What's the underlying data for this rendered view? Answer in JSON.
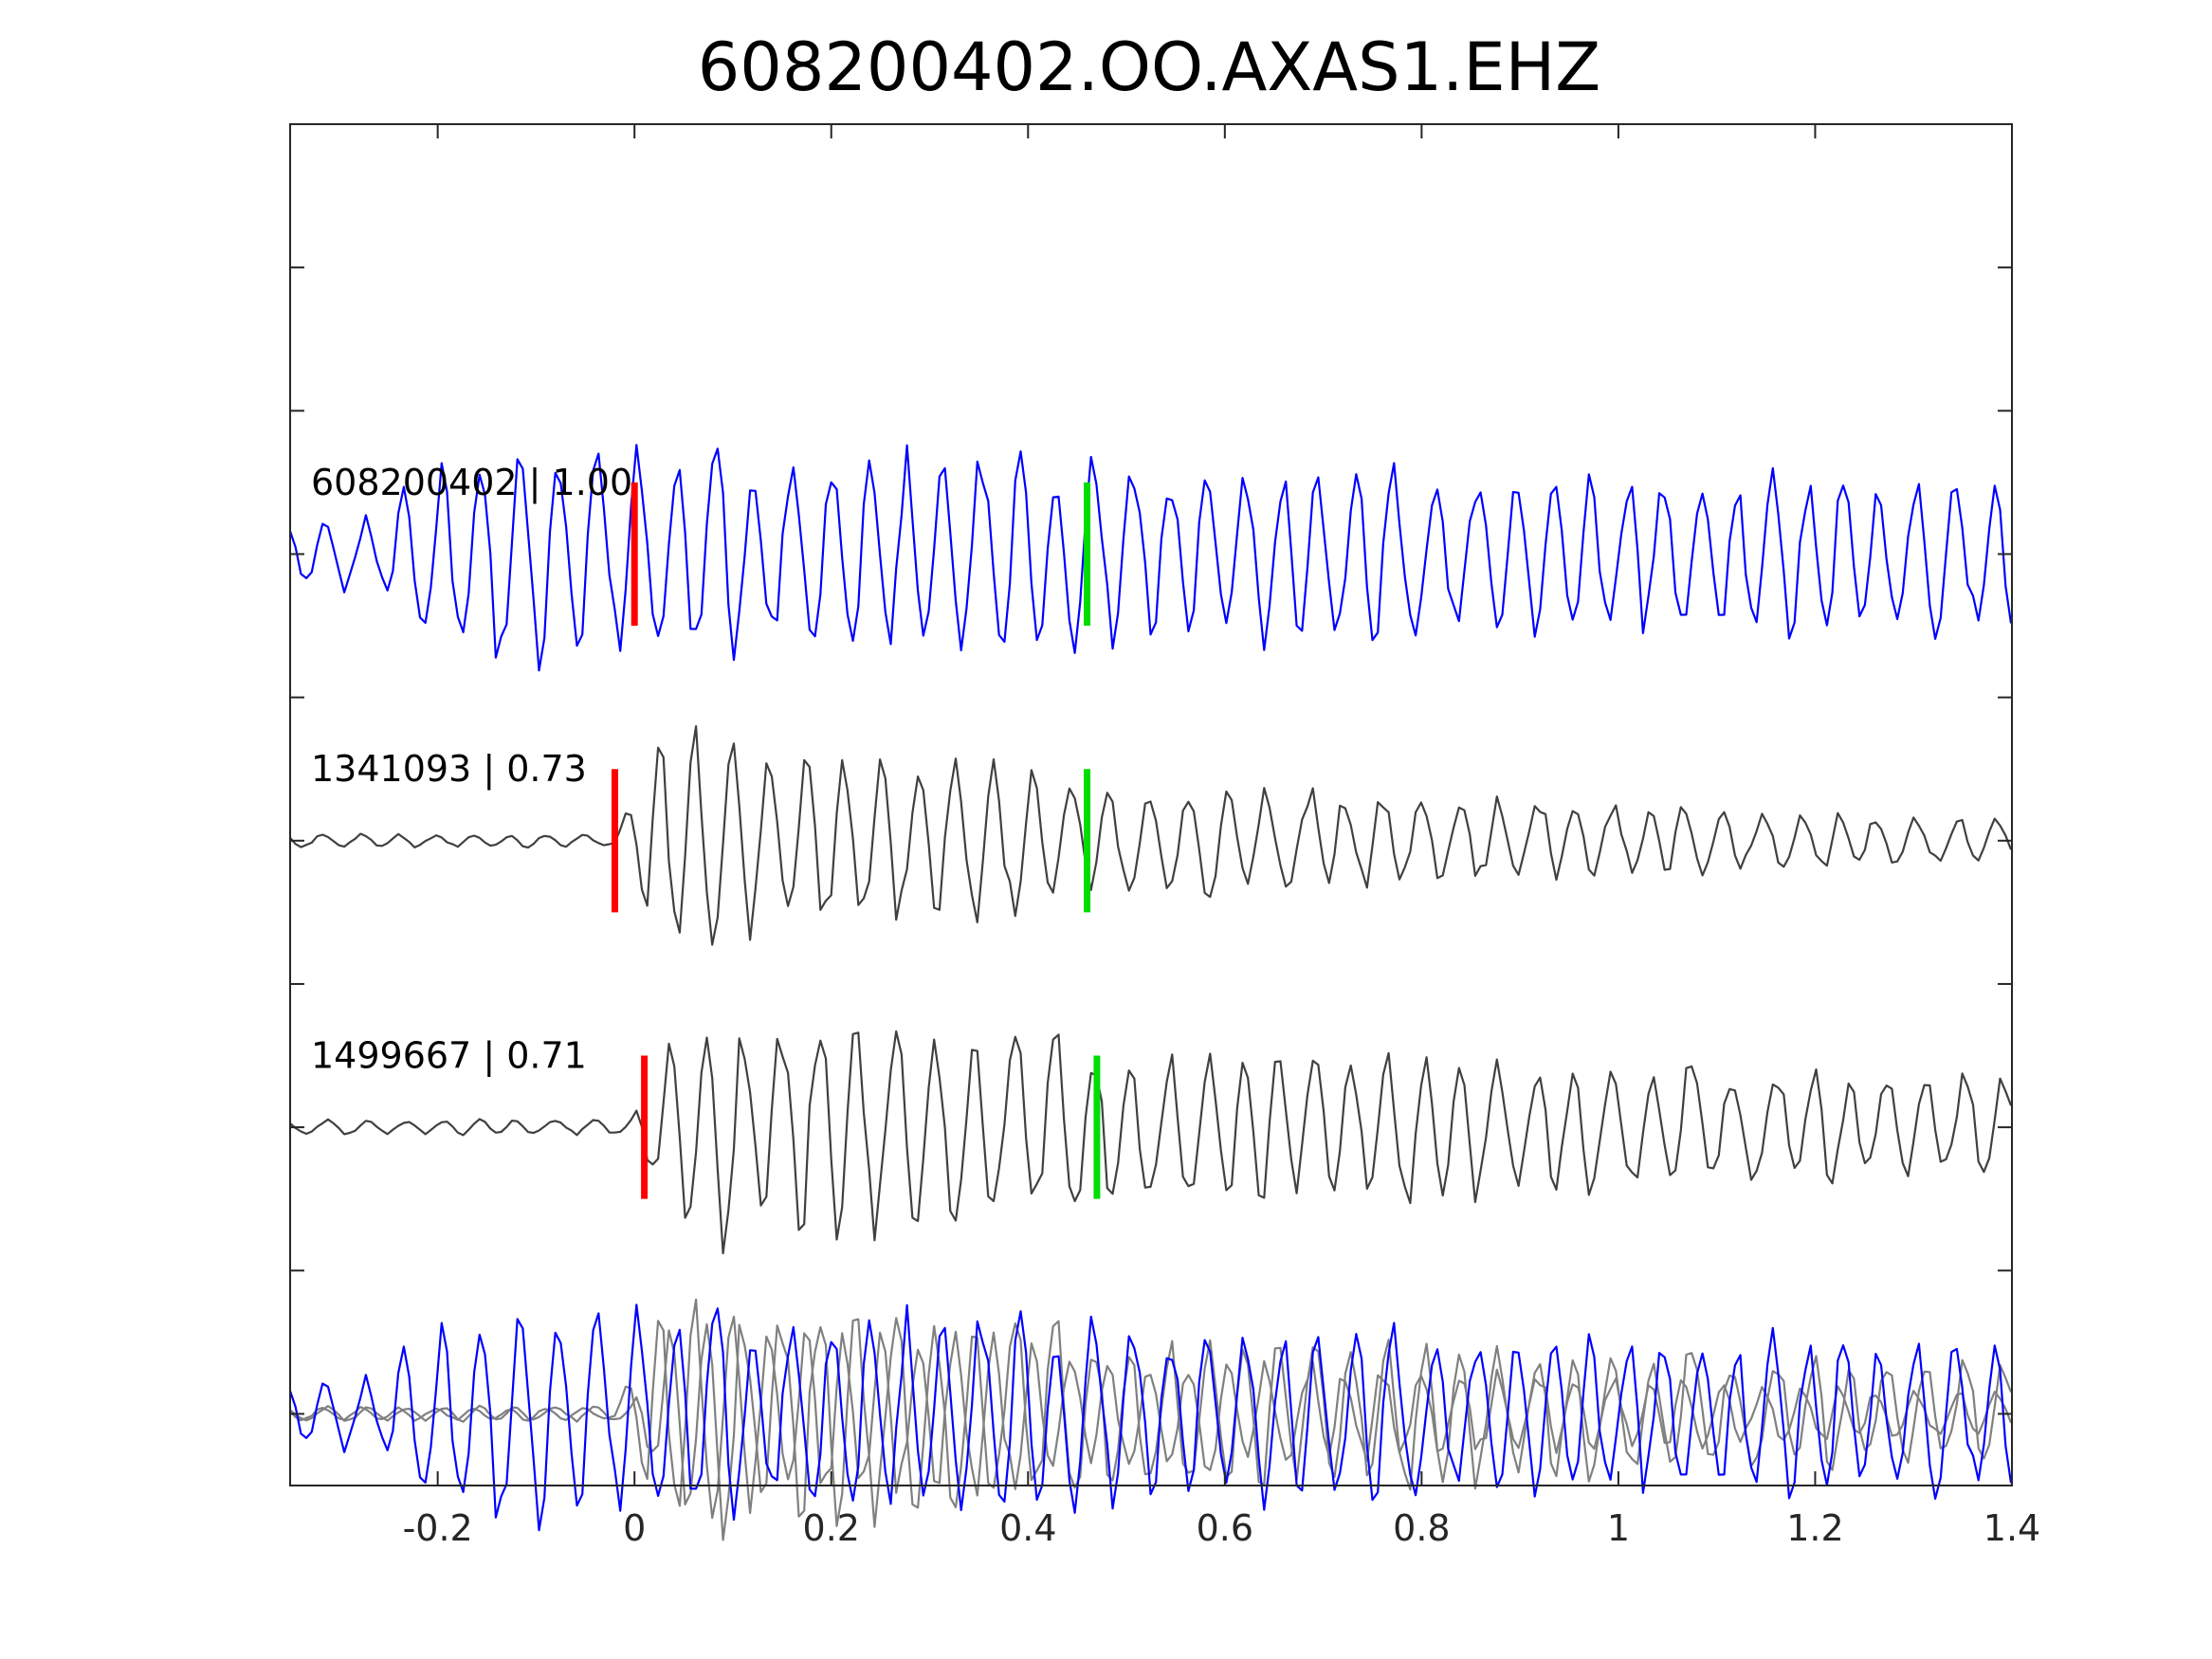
{
  "chart_data": {
    "type": "line",
    "title": "608200402.OO.AXAS1.EHZ",
    "xlabel": "",
    "ylabel": "",
    "xlim": [
      -0.35,
      1.4
    ],
    "ylim": [
      -4.5,
      5
    ],
    "xticks": [
      -0.2,
      0,
      0.2,
      0.4,
      0.6,
      0.8,
      1,
      1.2,
      1.4
    ],
    "xtick_labels": [
      "-0.2",
      "0",
      "0.2",
      "0.4",
      "0.6",
      "0.8",
      "1",
      "1.2",
      "1.4"
    ],
    "yticks": [
      -4,
      -3,
      -2,
      -1,
      0,
      1,
      2,
      3,
      4
    ],
    "grid": false,
    "traces": [
      {
        "label": "608200402 | 1.00",
        "event_id": "608200402",
        "correlation": "1.00",
        "color": "#0000ff",
        "baseline": 2,
        "onset": -0.25,
        "noise_amp": 0.3,
        "coda_amp": 0.4,
        "peak_amp": 0.9,
        "decay": 0.6,
        "seed": 11,
        "p_pick": 0.0,
        "s_pick": 0.46
      },
      {
        "label": "1341093 | 0.73",
        "event_id": "1341093",
        "correlation": "0.73",
        "color": "#404040",
        "baseline": 0,
        "onset": -0.02,
        "noise_amp": 0.05,
        "coda_amp": 0.07,
        "peak_amp": 0.95,
        "decay": 1.4,
        "seed": 29,
        "p_pick": -0.02,
        "s_pick": 0.46
      },
      {
        "label": "1499667 | 0.71",
        "event_id": "1499667",
        "correlation": "0.71",
        "color": "#404040",
        "baseline": -2,
        "onset": 0.0,
        "noise_amp": 0.06,
        "coda_amp": 0.2,
        "peak_amp": 0.95,
        "decay": 0.9,
        "seed": 53,
        "p_pick": 0.01,
        "s_pick": 0.47
      }
    ],
    "overlay": {
      "baseline": -4,
      "colors": [
        "#0000ff",
        "#808080",
        "#808080"
      ]
    },
    "pick_colors": {
      "p": "#ff0000",
      "s": "#00dd00"
    },
    "pick_half_height": 0.5
  }
}
